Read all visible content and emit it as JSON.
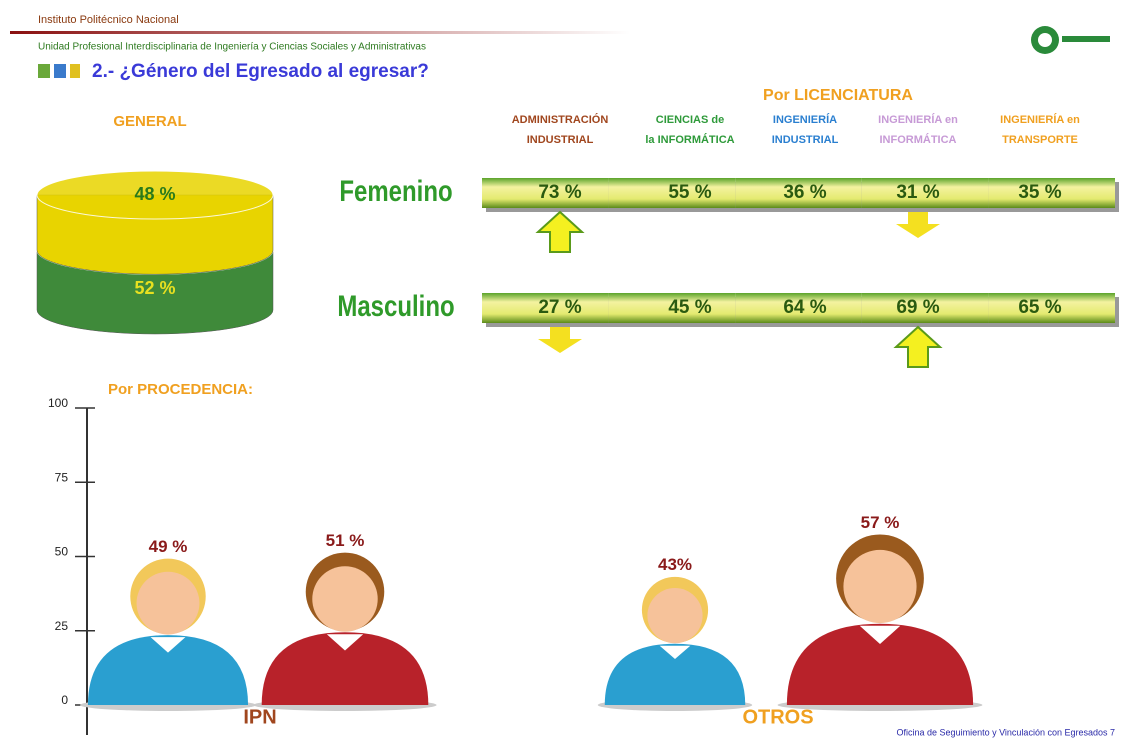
{
  "header": {
    "institute": "Instituto Politécnico Nacional",
    "unit": "Unidad Profesional Interdisciplinaria de Ingeniería y Ciencias Sociales y Administrativas",
    "title": "2.- ¿Género del Egresado al egresar?",
    "footer": "Oficina de Seguimiento y Vinculación con Egresados 7"
  },
  "chart_data": [
    {
      "type": "pie",
      "title": "GENERAL",
      "values": [
        48,
        52
      ],
      "value_labels": [
        "48 %",
        "52 %"
      ],
      "colors": [
        "#e8d400",
        "#3f8a3a"
      ]
    },
    {
      "type": "strip",
      "title": "Por LICENCIATURA",
      "categories": [
        "ADMINISTRACIÓN INDUSTRIAL",
        "CIENCIAS de la INFORMÁTICA",
        "INGENIERÍA INDUSTRIAL",
        "INGENIERÍA en INFORMÁTICA",
        "INGENIERÍA en TRANSPORTE"
      ],
      "category_colors": [
        "#a0461e",
        "#2e9a3a",
        "#2a7fd0",
        "#c79ad6",
        "#f0a020"
      ],
      "series": [
        {
          "name": "Femenino",
          "color": "#2f9a2a",
          "values": [
            73,
            55,
            36,
            31,
            35
          ],
          "value_labels": [
            "73 %",
            "55 %",
            "36 %",
            "31 %",
            "35 %"
          ]
        },
        {
          "name": "Masculino",
          "color": "#2f9a2a",
          "values": [
            27,
            45,
            64,
            69,
            65
          ],
          "value_labels": [
            "27 %",
            "45 %",
            "64 %",
            "69 %",
            "65 %"
          ]
        }
      ]
    },
    {
      "type": "pictogram",
      "title": "Por PROCEDENCIA:",
      "categories": [
        "IPN",
        "OTROS"
      ],
      "category_colors": [
        "#a0461e",
        "#f0a020"
      ],
      "ylim": [
        0,
        100
      ],
      "yticks": [
        0,
        25,
        50,
        75,
        100
      ],
      "series": [
        {
          "color": "#2a9fd0",
          "hair": "#f2c85a",
          "values": [
            49,
            43
          ],
          "value_labels": [
            "49 %",
            "43%"
          ]
        },
        {
          "color": "#b8222a",
          "hair": "#9a5a1e",
          "values": [
            51,
            57
          ],
          "value_labels": [
            "51 %",
            "57 %"
          ]
        }
      ]
    }
  ]
}
